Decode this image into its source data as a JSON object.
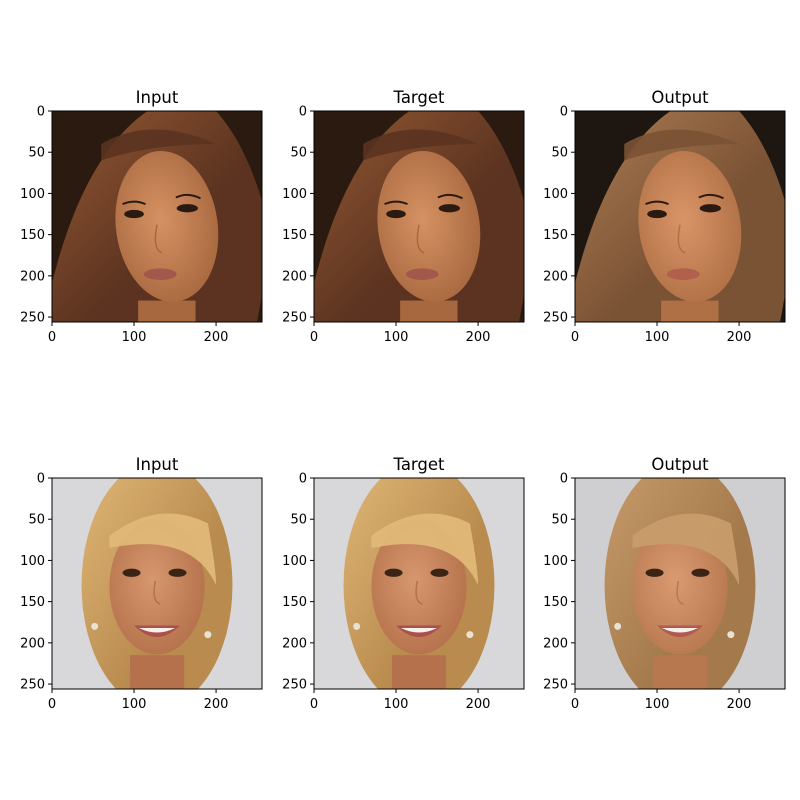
{
  "figure": {
    "image_extent": [
      0,
      256
    ],
    "xticks": [
      "0",
      "100",
      "200"
    ],
    "yticks": [
      "0",
      "50",
      "100",
      "150",
      "200",
      "250"
    ],
    "rows": [
      {
        "panels": [
          {
            "title": "Input",
            "subject": "portrait of a woman with long dark brown hair",
            "palette": {
              "bg": "#2a1a10",
              "hair": "#5b3320",
              "hair_hi": "#9a5c35",
              "skin": "#d59263",
              "skin_shadow": "#a8683f",
              "lips": "#a4584b",
              "eyes": "#2b1a12"
            }
          },
          {
            "title": "Target",
            "subject": "portrait of a woman with long dark brown hair",
            "palette": {
              "bg": "#2a1a10",
              "hair": "#5b3320",
              "hair_hi": "#9a5c35",
              "skin": "#d59263",
              "skin_shadow": "#a8683f",
              "lips": "#a4584b",
              "eyes": "#2b1a12"
            }
          },
          {
            "title": "Output",
            "subject": "generated portrait with lighter brown hair",
            "palette": {
              "bg": "#1e1611",
              "hair": "#7a5234",
              "hair_hi": "#b08056",
              "skin": "#d99568",
              "skin_shadow": "#b07045",
              "lips": "#b0604d",
              "eyes": "#2b1a12"
            }
          }
        ]
      },
      {
        "panels": [
          {
            "title": "Input",
            "subject": "smiling woman with blonde bob haircut and earrings",
            "palette": {
              "bg": "#d8d8da",
              "hair": "#b98b4e",
              "hair_hi": "#e0b878",
              "skin": "#d7976e",
              "skin_shadow": "#b4714b",
              "lips": "#a9514a",
              "eyes": "#3a2416"
            }
          },
          {
            "title": "Target",
            "subject": "smiling woman with blonde bob haircut and earrings",
            "palette": {
              "bg": "#d8d8da",
              "hair": "#b98b4e",
              "hair_hi": "#e0b878",
              "skin": "#d7976e",
              "skin_shadow": "#b4714b",
              "lips": "#a9514a",
              "eyes": "#3a2416"
            }
          },
          {
            "title": "Output",
            "subject": "generated smiling woman with light brown hair",
            "palette": {
              "bg": "#cfcfd2",
              "hair": "#a47a4c",
              "hair_hi": "#c89c6c",
              "skin": "#d99a72",
              "skin_shadow": "#b8784f",
              "lips": "#b05a50",
              "eyes": "#3a2416"
            }
          }
        ]
      }
    ]
  }
}
